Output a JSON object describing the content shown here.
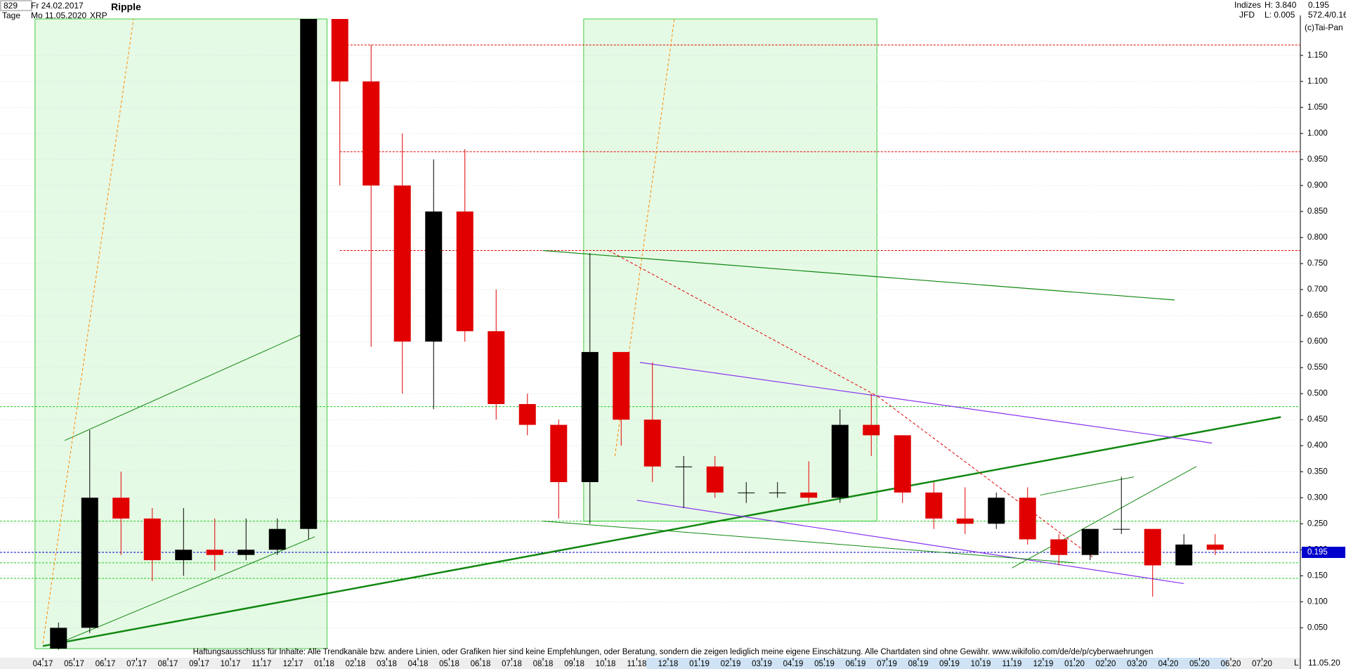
{
  "header": {
    "id": "829",
    "from": "Fr 24.02.2017",
    "period": "Tage",
    "to": "Mo 11.05.2020",
    "symbol": "XRP",
    "index": "Indizes",
    "broker": "JFD",
    "high": "H: 3.840",
    "low": "L: 0.005",
    "last": "0.195",
    "range": "572.4/0.16",
    "copyright": "(c)Tai-Pan",
    "date_right": "11.05.20",
    "scale_flag": "L"
  },
  "chart_data": {
    "type": "candlestick",
    "title": "Ripple",
    "categories": [
      "04.17",
      "05.17",
      "06.17",
      "07.17",
      "08.17",
      "09.17",
      "10.17",
      "11.17",
      "12.17",
      "01.18",
      "02.18",
      "03.18",
      "04.18",
      "05.18",
      "06.18",
      "07.18",
      "08.18",
      "09.18",
      "10.18",
      "11.18",
      "12.18",
      "01.19",
      "02.19",
      "03.19",
      "04.19",
      "05.19",
      "06.19",
      "07.19",
      "08.19",
      "09.19",
      "10.19",
      "11.19",
      "12.19",
      "01.20",
      "02.20",
      "03.20",
      "04.20",
      "05.20",
      "06.20",
      "07.20"
    ],
    "open": [
      0.01,
      0.05,
      0.3,
      0.26,
      0.18,
      0.2,
      0.19,
      0.2,
      0.24,
      1.22,
      1.1,
      0.9,
      0.6,
      0.85,
      0.62,
      0.48,
      0.44,
      0.33,
      0.58,
      0.45,
      0.36,
      0.36,
      0.31,
      0.31,
      0.31,
      0.3,
      0.44,
      0.42,
      0.31,
      0.26,
      0.25,
      0.3,
      0.22,
      0.19,
      0.24,
      0.24,
      0.17,
      0.21,
      null,
      null
    ],
    "high": [
      0.06,
      0.43,
      0.35,
      0.28,
      0.28,
      0.26,
      0.26,
      0.26,
      1.22,
      1.22,
      1.17,
      1.0,
      0.95,
      0.97,
      0.7,
      0.5,
      0.45,
      0.77,
      0.58,
      0.56,
      0.38,
      0.38,
      0.33,
      0.33,
      0.37,
      0.47,
      0.5,
      0.42,
      0.33,
      0.32,
      0.31,
      0.32,
      0.23,
      0.24,
      0.34,
      0.24,
      0.23,
      0.23,
      null,
      null
    ],
    "low": [
      0.008,
      0.04,
      0.19,
      0.14,
      0.15,
      0.16,
      0.18,
      0.19,
      0.22,
      0.9,
      0.59,
      0.5,
      0.47,
      0.6,
      0.45,
      0.42,
      0.26,
      0.25,
      0.4,
      0.33,
      0.28,
      0.3,
      0.29,
      0.3,
      0.29,
      0.29,
      0.38,
      0.29,
      0.24,
      0.23,
      0.24,
      0.21,
      0.17,
      0.18,
      0.23,
      0.11,
      0.17,
      0.19,
      null,
      null
    ],
    "close": [
      0.05,
      0.3,
      0.26,
      0.18,
      0.2,
      0.19,
      0.2,
      0.24,
      1.22,
      1.1,
      0.9,
      0.6,
      0.85,
      0.62,
      0.48,
      0.44,
      0.33,
      0.58,
      0.45,
      0.36,
      0.36,
      0.31,
      0.31,
      0.31,
      0.3,
      0.44,
      0.42,
      0.31,
      0.26,
      0.25,
      0.3,
      0.22,
      0.19,
      0.24,
      0.24,
      0.17,
      0.21,
      0.2,
      null,
      null
    ],
    "up_color": "#000000",
    "down_color": "#e00000",
    "ylim": [
      0.01,
      1.22
    ],
    "yticks": [
      {
        "value": 0.05,
        "label": "0.050"
      },
      {
        "value": 0.1,
        "label": "0.100"
      },
      {
        "value": 0.15,
        "label": "0.150"
      },
      {
        "value": 0.2,
        "label": "0.200"
      },
      {
        "value": 0.25,
        "label": "0.250"
      },
      {
        "value": 0.3,
        "label": "0.300"
      },
      {
        "value": 0.35,
        "label": "0.350"
      },
      {
        "value": 0.4,
        "label": "0.400"
      },
      {
        "value": 0.45,
        "label": "0.450"
      },
      {
        "value": 0.5,
        "label": "0.500"
      },
      {
        "value": 0.55,
        "label": "0.550"
      },
      {
        "value": 0.6,
        "label": "0.600"
      },
      {
        "value": 0.65,
        "label": "0.650"
      },
      {
        "value": 0.7,
        "label": "0.700"
      },
      {
        "value": 0.75,
        "label": "0.750"
      },
      {
        "value": 0.8,
        "label": "0.800"
      },
      {
        "value": 0.85,
        "label": "0.850"
      },
      {
        "value": 0.9,
        "label": "0.900"
      },
      {
        "value": 0.95,
        "label": "0.950"
      },
      {
        "value": 1,
        "label": "1.000"
      },
      {
        "value": 1.05,
        "label": "1.050"
      },
      {
        "value": 1.1,
        "label": "1.100"
      },
      {
        "value": 1.15,
        "label": "1.150"
      }
    ],
    "grid": true,
    "current": {
      "value": 0.195,
      "label": "0.195",
      "color": "#0000cc"
    },
    "hlines": [
      {
        "value": 1.17,
        "color": "#e00000"
      },
      {
        "value": 0.965,
        "color": "#e00000"
      },
      {
        "value": 0.775,
        "color": "#e00000"
      },
      {
        "value": 0.475,
        "color": "#22cc22"
      },
      {
        "value": 0.255,
        "color": "#22cc22"
      },
      {
        "value": 0.175,
        "color": "#22cc22"
      },
      {
        "value": 0.145,
        "color": "#22cc22"
      }
    ],
    "zones": [
      {
        "x": [
          -0.25,
          9.09
        ],
        "y": [
          0.01,
          1.22
        ]
      },
      {
        "x": [
          17.3,
          26.68
        ],
        "y": [
          0.255,
          1.22
        ]
      }
    ],
    "trendlines": [
      {
        "x": [
          0,
          39.6
        ],
        "y": [
          0.015,
          0.455
        ],
        "color": "#118811",
        "width": 2.5
      },
      {
        "x": [
          19.1,
          37.4
        ],
        "y": [
          0.56,
          0.405
        ],
        "color": "#8833ee",
        "width": 1.2
      },
      {
        "x": [
          19,
          36.5
        ],
        "y": [
          0.295,
          0.135
        ],
        "color": "#8833ee",
        "width": 1.2
      },
      {
        "x": [
          16,
          36.2
        ],
        "y": [
          0.775,
          0.68
        ],
        "color": "#118811",
        "width": 1.2
      },
      {
        "x": [
          0.7,
          8.7
        ],
        "y": [
          0.41,
          0.625
        ],
        "color": "#118811",
        "width": 1
      },
      {
        "x": [
          0.5,
          8.7
        ],
        "y": [
          0.02,
          0.225
        ],
        "color": "#118811",
        "width": 1
      },
      {
        "x": [
          16,
          33
        ],
        "y": [
          0.255,
          0.175
        ],
        "color": "#118811",
        "width": 1
      },
      {
        "x": [
          31,
          36.9
        ],
        "y": [
          0.165,
          0.36
        ],
        "color": "#118811",
        "width": 1
      },
      {
        "x": [
          31.9,
          34.9
        ],
        "y": [
          0.305,
          0.34
        ],
        "color": "#118811",
        "width": 1
      },
      {
        "x": [
          18.1,
          26.7
        ],
        "y": [
          0.775,
          0.495
        ],
        "color": "#e00000",
        "width": 1,
        "dash": true
      },
      {
        "x": [
          26.7,
          33.6
        ],
        "y": [
          0.495,
          0.185
        ],
        "color": "#e00000",
        "width": 1,
        "dash": true
      },
      {
        "x": [
          0,
          2.9
        ],
        "y": [
          0.02,
          1.22
        ],
        "color": "#ff8800",
        "width": 1,
        "dash": true
      },
      {
        "x": [
          18.3,
          20.2
        ],
        "y": [
          0.38,
          1.22
        ],
        "color": "#ff8800",
        "width": 1,
        "dash": true
      }
    ],
    "disclaimer": "Haftungsausschluss für Inhalte: Alle Trendkanäle bzw. andere Linien, oder Grafiken hier sind keine Empfehlungen, oder Beratung, sondern die zeigen lediglich meine eigene Einschätzung. Alle Chartdaten sind ohne Gewähr.  www.wikifolio.com/de/de/p/cyberwaehrungen"
  }
}
